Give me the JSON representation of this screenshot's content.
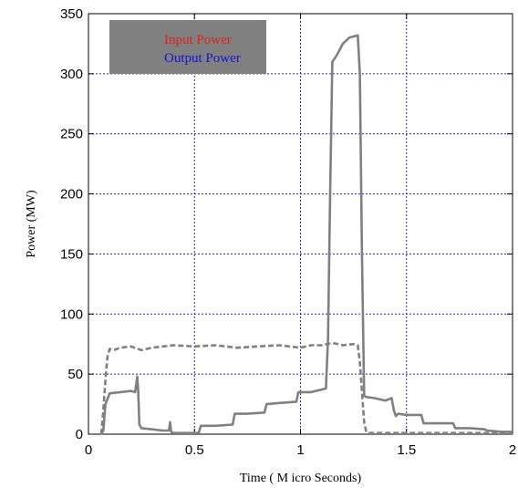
{
  "chart_data": {
    "type": "line",
    "xlabel": "Time ( M icro Seconds)",
    "ylabel": "Power (MW)",
    "xlim": [
      0,
      2
    ],
    "ylim": [
      0,
      350
    ],
    "xticks": [
      0,
      0.5,
      1,
      1.5,
      2
    ],
    "xtick_labels": [
      "0",
      "0.5",
      "1",
      "1.5",
      "2"
    ],
    "yticks": [
      0,
      50,
      100,
      150,
      200,
      250,
      300,
      350
    ],
    "ytick_labels": [
      "0",
      "50",
      "100",
      "150",
      "200",
      "250",
      "300",
      "350"
    ],
    "grid": true,
    "legend": {
      "position": "top-left",
      "background": "#808080",
      "entries": [
        {
          "label": "Input Power",
          "color": "#e0211f"
        },
        {
          "label": "Output Power",
          "color": "#1515d8"
        }
      ]
    },
    "series": [
      {
        "name": "Input Power",
        "color": "#808080",
        "dash": "dashed",
        "x": [
          0.06,
          0.07,
          0.08,
          0.09,
          0.1,
          0.12,
          0.15,
          0.2,
          0.25,
          0.3,
          0.4,
          0.5,
          0.6,
          0.7,
          0.8,
          0.9,
          1.0,
          1.05,
          1.1,
          1.15,
          1.2,
          1.25,
          1.27,
          1.28,
          1.29,
          1.3,
          1.31,
          1.32,
          1.35,
          1.4,
          1.5,
          1.6,
          1.7,
          1.8,
          1.9,
          2.0
        ],
        "y": [
          0,
          20,
          45,
          65,
          71,
          70,
          72,
          73,
          70,
          72,
          74,
          73,
          74,
          72,
          73,
          74,
          72,
          74,
          74,
          76,
          74,
          75,
          74,
          60,
          35,
          10,
          2,
          1,
          1,
          1,
          1,
          1,
          1,
          1,
          1,
          1
        ]
      },
      {
        "name": "Output Power",
        "color": "#808080",
        "dash": "solid",
        "x": [
          0.06,
          0.07,
          0.08,
          0.1,
          0.15,
          0.2,
          0.22,
          0.23,
          0.235,
          0.24,
          0.25,
          0.3,
          0.35,
          0.38,
          0.385,
          0.39,
          0.4,
          0.45,
          0.52,
          0.53,
          0.6,
          0.68,
          0.69,
          0.75,
          0.83,
          0.84,
          0.9,
          0.98,
          0.99,
          1.05,
          1.12,
          1.13,
          1.14,
          1.15,
          1.17,
          1.2,
          1.23,
          1.27,
          1.28,
          1.29,
          1.3,
          1.31,
          1.35,
          1.4,
          1.43,
          1.44,
          1.45,
          1.46,
          1.5,
          1.57,
          1.58,
          1.65,
          1.72,
          1.73,
          1.8,
          1.87,
          1.88,
          1.95,
          2.0
        ],
        "y": [
          0,
          3,
          25,
          34,
          35,
          36,
          35,
          48,
          35,
          8,
          5,
          4,
          3,
          3,
          10,
          2,
          1,
          1,
          1,
          7,
          7,
          8,
          17,
          17,
          18,
          25,
          26,
          27,
          35,
          35,
          38,
          80,
          200,
          310,
          315,
          325,
          330,
          332,
          300,
          150,
          32,
          31,
          30,
          28,
          30,
          20,
          15,
          17,
          16,
          16,
          9,
          9,
          9,
          5,
          5,
          4,
          3,
          2,
          2
        ]
      }
    ]
  }
}
